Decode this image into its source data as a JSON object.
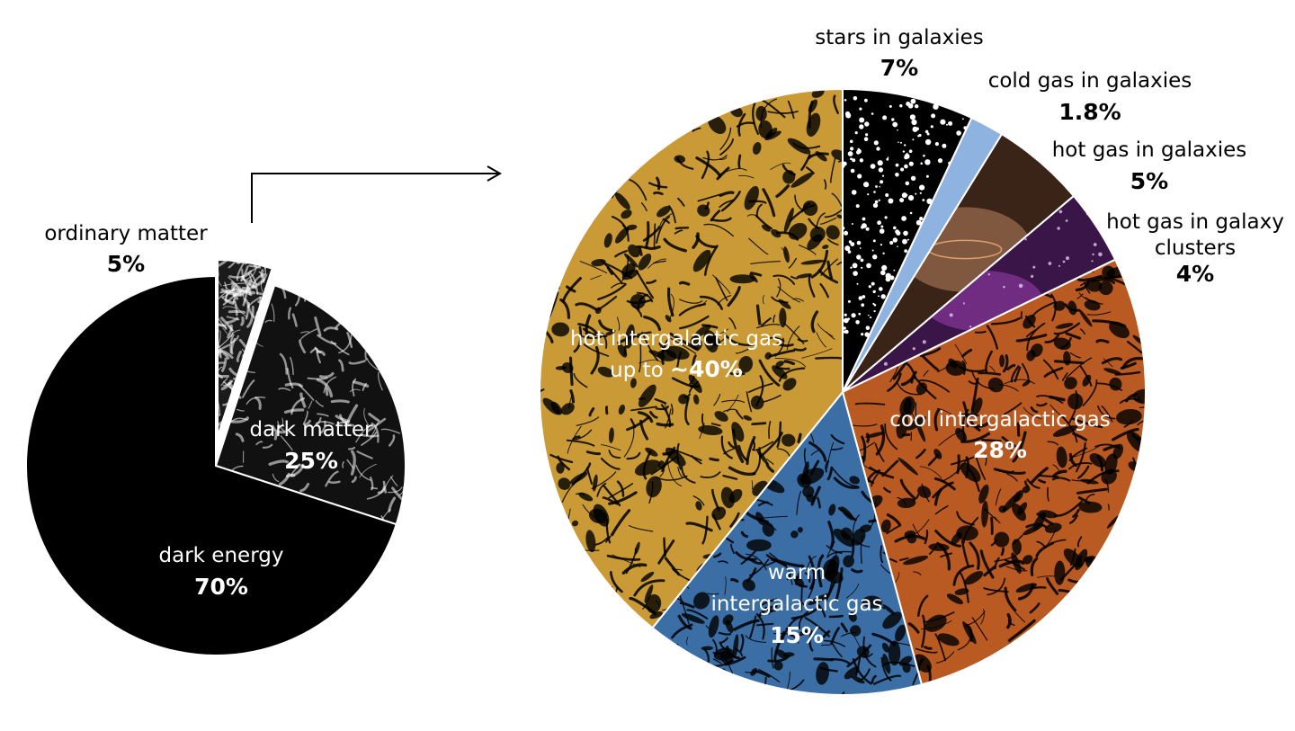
{
  "chart_data": [
    {
      "type": "pie",
      "title": "",
      "slices": [
        {
          "label": "ordinary matter",
          "value": 5,
          "value_label": "5%",
          "color": "#1b1b1b",
          "pattern": "filaments-white",
          "exploded": true
        },
        {
          "label": "dark matter",
          "value": 25,
          "value_label": "25%",
          "color": "#111111",
          "pattern": "filaments-white",
          "exploded": false
        },
        {
          "label": "dark energy",
          "value": 70,
          "value_label": "70%",
          "color": "#000000",
          "pattern": "none",
          "exploded": false
        }
      ],
      "start": "12 o'clock",
      "direction": "clockwise"
    },
    {
      "type": "pie",
      "title": "",
      "slices": [
        {
          "label": "stars in galaxies",
          "value": 7,
          "value_label": "7%",
          "color": "#000000",
          "pattern": "dots-white"
        },
        {
          "label": "cold gas in galaxies",
          "value": 1.8,
          "value_label": "1.8%",
          "color": "#8fb3e0",
          "pattern": "none"
        },
        {
          "label": "hot gas in galaxies",
          "value": 5,
          "value_label": "5%",
          "color": "#3a2418",
          "pattern": "glow-tan"
        },
        {
          "label": "hot gas in galaxy clusters",
          "value": 4,
          "value_label": "4%",
          "color": "#3a1648",
          "pattern": "glow-purple"
        },
        {
          "label": "cool intergalactic gas",
          "value": 28,
          "value_label": "28%",
          "color": "#b85a22",
          "pattern": "filaments-orange"
        },
        {
          "label": "warm intergalactic gas",
          "value": 15,
          "value_label": "15%",
          "color": "#3c6ea6",
          "pattern": "filaments-blue"
        },
        {
          "label": "hot intergalactic gas",
          "value": 39.2,
          "value_label": "up to ~40%",
          "color": "#c99a35",
          "pattern": "filaments-gold"
        }
      ],
      "start": "12 o'clock",
      "direction": "clockwise"
    }
  ],
  "labels": {
    "ordinary": {
      "name": "ordinary matter",
      "pct": "5%"
    },
    "dark_matter": {
      "name": "dark matter",
      "pct": "25%"
    },
    "dark_energy": {
      "name": "dark energy",
      "pct": "70%"
    },
    "stars": {
      "name": "stars in galaxies",
      "pct": "7%"
    },
    "cold": {
      "name": "cold gas in galaxies",
      "pct": "1.8%"
    },
    "hotgal": {
      "name": "hot gas in galaxies",
      "pct": "5%"
    },
    "clusters": {
      "name1": "hot gas in galaxy",
      "name2": "clusters",
      "pct": "4%"
    },
    "cool": {
      "name": "cool intergalactic gas",
      "pct": "28%"
    },
    "warm": {
      "name1": "warm",
      "name2": "intergalactic gas",
      "pct": "15%"
    },
    "hot": {
      "name1": "hot intergalactic gas",
      "prefix": "up to ",
      "pct": "~40%"
    }
  },
  "colors": {
    "background": "#ffffff",
    "text_dark": "#000000",
    "text_light": "#ffffff",
    "divider": "#ffffff"
  }
}
